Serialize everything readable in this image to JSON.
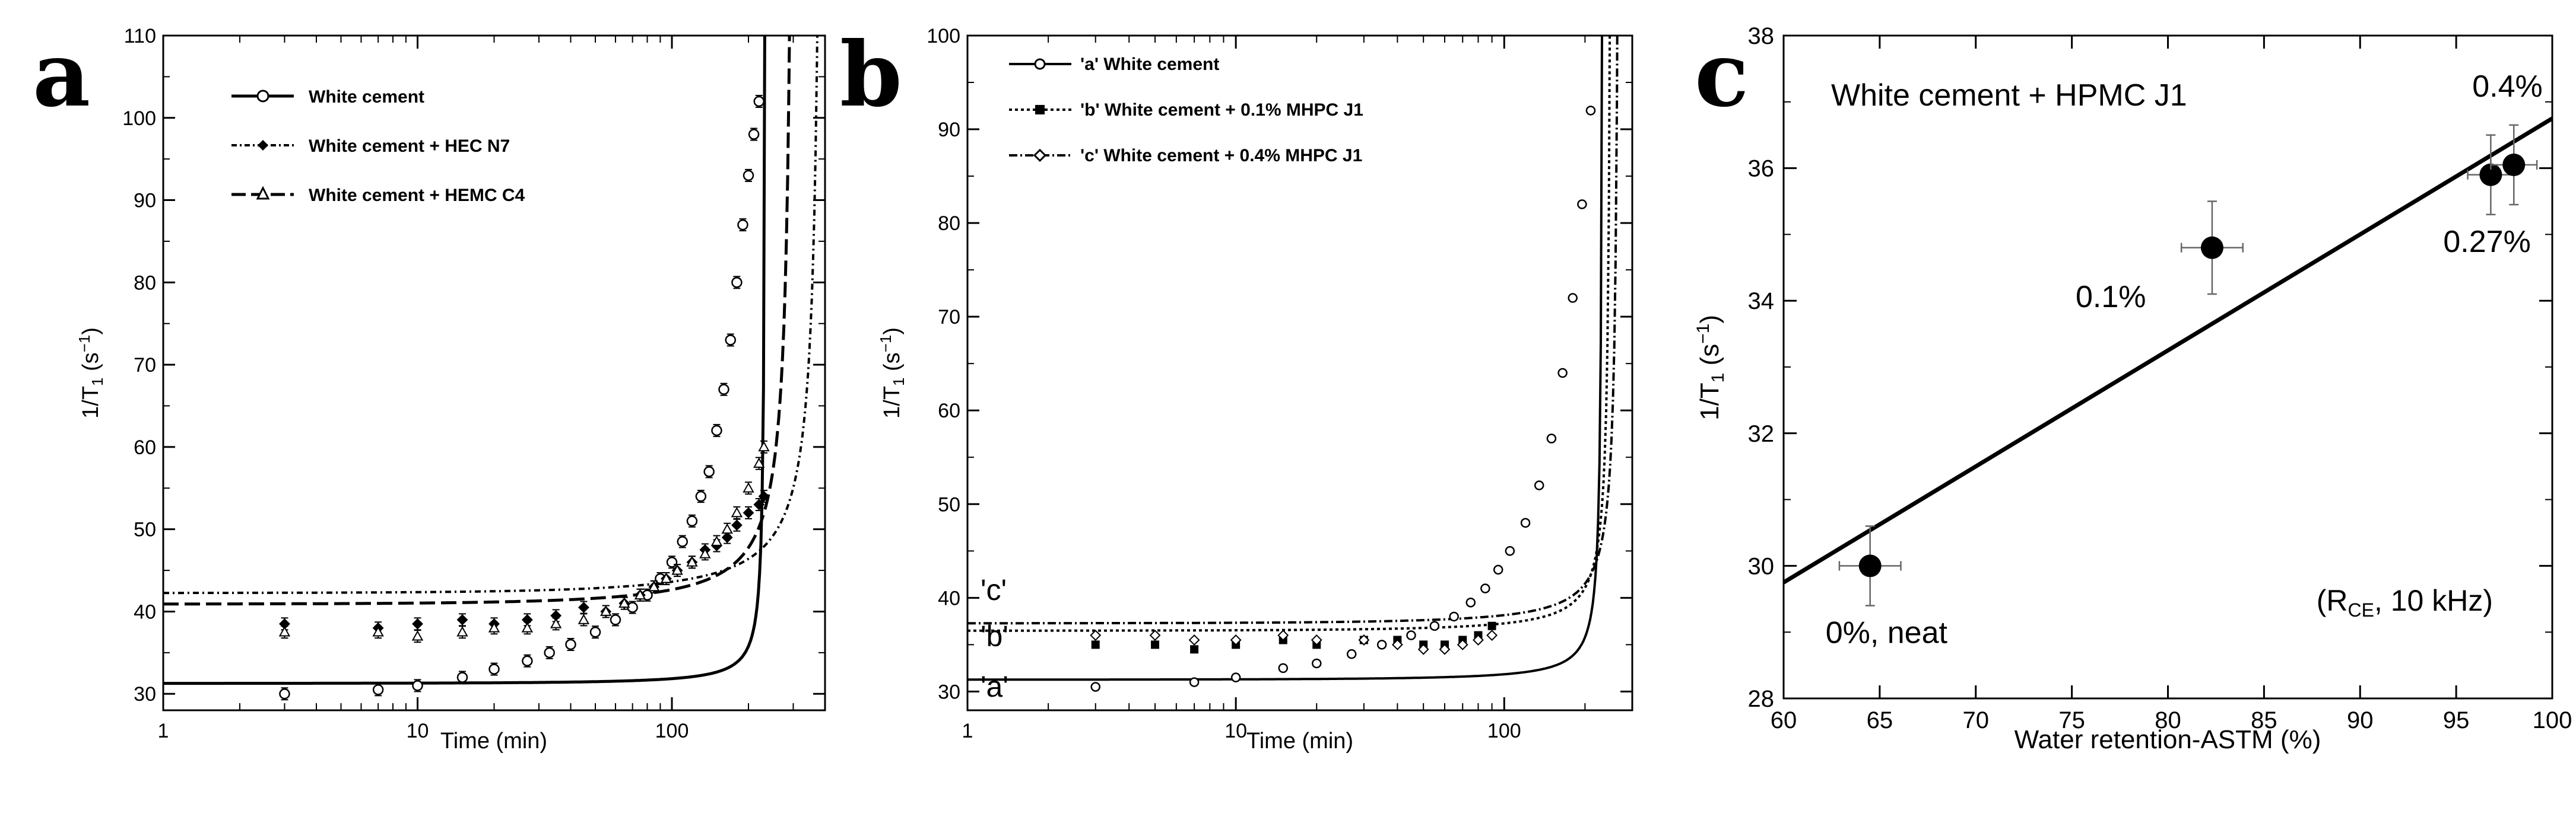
{
  "chart_data": [
    {
      "panel": "a",
      "type": "scatter",
      "xscale": "log",
      "xlabel": "Time (min)",
      "ylabel": "1/T1 (s⁻¹)",
      "xlim": [
        1,
        400
      ],
      "ylim": [
        28,
        110
      ],
      "xticks": [
        "1",
        "10",
        "100"
      ],
      "yticks": [
        "30",
        "40",
        "50",
        "60",
        "70",
        "80",
        "90",
        "100",
        "110"
      ],
      "legend": [
        "White cement",
        "White cement + HEC N7",
        "White cement + HEMC C4"
      ],
      "series": [
        {
          "name": "White cement",
          "x": [
            3,
            7,
            10,
            15,
            20,
            27,
            33,
            40,
            50,
            60,
            70,
            80,
            90,
            100,
            110,
            120,
            130,
            140,
            150,
            160,
            170,
            180,
            190,
            200,
            210,
            220
          ],
          "y": [
            30,
            30.5,
            31,
            32,
            33,
            34,
            35,
            36,
            37.5,
            39,
            40.5,
            42,
            44,
            46,
            48.5,
            51,
            54,
            57,
            62,
            67,
            73,
            80,
            87,
            93,
            98,
            102
          ]
        },
        {
          "name": "White cement + HEC N7",
          "x": [
            3,
            7,
            10,
            15,
            20,
            27,
            35,
            45,
            55,
            65,
            75,
            85,
            95,
            105,
            120,
            135,
            150,
            165,
            180,
            200,
            220,
            230
          ],
          "y": [
            38.5,
            38,
            38.5,
            39,
            38.5,
            39,
            39.5,
            40.5,
            40,
            41,
            42,
            43,
            44,
            45,
            46,
            47.5,
            48,
            49,
            50.5,
            52,
            53,
            54
          ]
        },
        {
          "name": "White cement + HEMC C4",
          "x": [
            3,
            7,
            10,
            15,
            20,
            27,
            35,
            45,
            55,
            65,
            75,
            85,
            95,
            105,
            120,
            135,
            150,
            165,
            180,
            200,
            220,
            230
          ],
          "y": [
            37.5,
            37.5,
            37,
            37.5,
            38,
            38,
            38.5,
            39,
            40,
            41,
            42,
            43,
            44,
            45,
            46,
            47,
            48.5,
            50,
            52,
            55,
            58,
            60
          ]
        }
      ]
    },
    {
      "panel": "b",
      "type": "scatter",
      "xscale": "log",
      "xlabel": "Time (min)",
      "ylabel": "1/T1 (s⁻¹)",
      "xlim": [
        1,
        300
      ],
      "ylim": [
        28,
        100
      ],
      "xticks": [
        "1",
        "10",
        "100"
      ],
      "yticks": [
        "30",
        "40",
        "50",
        "60",
        "70",
        "80",
        "90",
        "100"
      ],
      "legend": [
        "'a' White cement",
        "'b' White cement + 0.1% MHPC J1",
        "'c' White cement + 0.4% MHPC J1"
      ],
      "curve_tags": [
        "'c'",
        "'b'",
        "'a'"
      ],
      "series": [
        {
          "name": "'a' White cement",
          "x": [
            3,
            7,
            10,
            15,
            20,
            27,
            35,
            45,
            55,
            65,
            75,
            85,
            95,
            105,
            120,
            135,
            150,
            165,
            180,
            195,
            210
          ],
          "y": [
            30.5,
            31,
            31.5,
            32.5,
            33,
            34,
            35,
            36,
            37,
            38,
            39.5,
            41,
            43,
            45,
            48,
            52,
            57,
            64,
            72,
            82,
            92
          ]
        },
        {
          "name": "'b' White cement + 0.1% MHPC J1",
          "x": [
            3,
            5,
            7,
            10,
            15,
            20,
            30,
            40,
            50,
            60,
            70,
            80,
            90
          ],
          "y": [
            35,
            35,
            34.5,
            35,
            35.5,
            35,
            35.5,
            35.5,
            35,
            35,
            35.5,
            36,
            37
          ]
        },
        {
          "name": "'c' White cement + 0.4% MHPC J1",
          "x": [
            3,
            5,
            7,
            10,
            15,
            20,
            30,
            40,
            50,
            60,
            70,
            80,
            90
          ],
          "y": [
            36,
            36,
            35.5,
            35.5,
            36,
            35.5,
            35.5,
            35,
            34.5,
            34.5,
            35,
            35.5,
            36
          ]
        }
      ]
    },
    {
      "panel": "c",
      "type": "scatter",
      "title": "White cement + HPMC J1",
      "xlabel": "Water retention-ASTM (%)",
      "ylabel": "1/T1 (s⁻¹)",
      "xlim": [
        60,
        100
      ],
      "ylim": [
        28,
        38
      ],
      "xticks": [
        "60",
        "65",
        "70",
        "75",
        "80",
        "85",
        "90",
        "95",
        "100"
      ],
      "yticks": [
        "28",
        "30",
        "32",
        "34",
        "36",
        "38"
      ],
      "annotation": "(RCE, 10 kHz)",
      "points": [
        {
          "label": "0%, neat",
          "x": 64.5,
          "y": 30.0,
          "xerr": 1.6,
          "yerr": 0.6
        },
        {
          "label": "0.1%",
          "x": 82.3,
          "y": 34.8,
          "xerr": 1.6,
          "yerr": 0.7
        },
        {
          "label": "0.27%",
          "x": 96.8,
          "y": 35.9,
          "xerr": 1.2,
          "yerr": 0.6
        },
        {
          "label": "0.4%",
          "x": 98.0,
          "y": 36.05,
          "xerr": 1.2,
          "yerr": 0.6
        }
      ],
      "fit_line": {
        "x": [
          60,
          100
        ],
        "y": [
          29.75,
          36.75
        ]
      }
    }
  ]
}
